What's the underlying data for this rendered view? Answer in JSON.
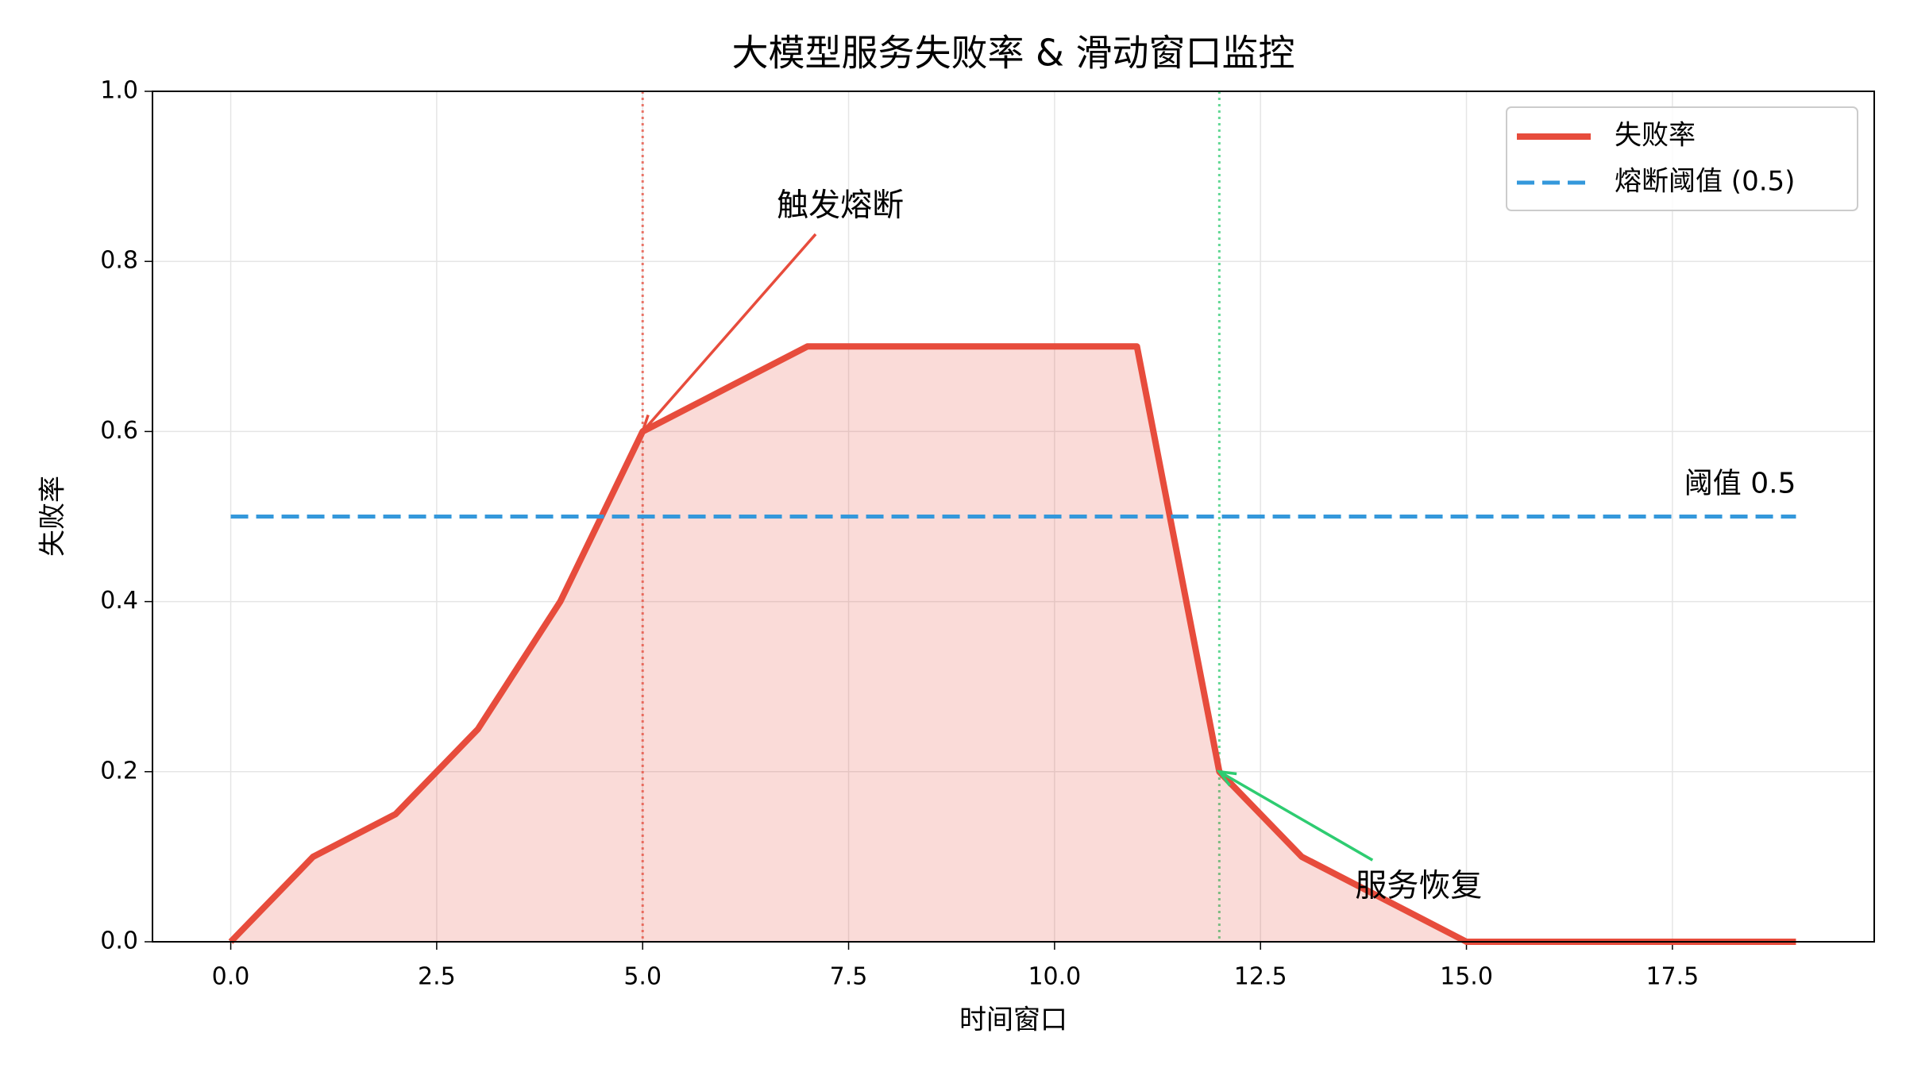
{
  "chart_data": {
    "type": "line",
    "title": "大模型服务失败率 & 滑动窗口监控",
    "xlabel": "时间窗口",
    "ylabel": "失败率",
    "x": [
      0,
      1,
      2,
      3,
      4,
      5,
      6,
      7,
      8,
      9,
      10,
      11,
      12,
      13,
      14,
      15,
      16,
      17,
      18,
      19
    ],
    "series": [
      {
        "name": "失败率",
        "color": "#e74c3c",
        "fill": true,
        "values": [
          0,
          0.1,
          0.15,
          0.25,
          0.4,
          0.6,
          0.65,
          0.7,
          0.7,
          0.7,
          0.7,
          0.7,
          0.2,
          0.1,
          0.05,
          0,
          0,
          0,
          0,
          0
        ]
      },
      {
        "name": "熔断阈值 (0.5)",
        "color": "#3498db",
        "dashed": true,
        "x": [
          0,
          19
        ],
        "values": [
          0.5,
          0.5
        ]
      }
    ],
    "vlines": [
      {
        "x": 5,
        "color": "#e74c3c"
      },
      {
        "x": 12,
        "color": "#2ecc71"
      }
    ],
    "annotations": [
      {
        "text": "触发熔断",
        "x": 5,
        "y": 0.6,
        "color": "#e74c3c"
      },
      {
        "text": "服务恢复",
        "x": 12,
        "y": 0.2,
        "color": "#2ecc71"
      }
    ],
    "threshold_label": {
      "text": "阈值 0.5",
      "x": 19,
      "y": 0.5,
      "color": "#3498db"
    },
    "xlim": [
      -0.95,
      19.95
    ],
    "ylim": [
      0,
      1
    ],
    "xticks": [
      {
        "value": 0,
        "label": "0.0"
      },
      2.5,
      {
        "value": 5,
        "label": "5.0"
      },
      7.5,
      {
        "value": 10,
        "label": "10.0"
      },
      12.5,
      {
        "value": 15,
        "label": "15.0"
      },
      17.5
    ],
    "yticks": [
      {
        "value": 0,
        "label": "0.0"
      },
      0.2,
      0.4,
      0.6,
      0.8,
      {
        "value": 1,
        "label": "1.0"
      }
    ],
    "grid": true,
    "legend": "upper right"
  }
}
